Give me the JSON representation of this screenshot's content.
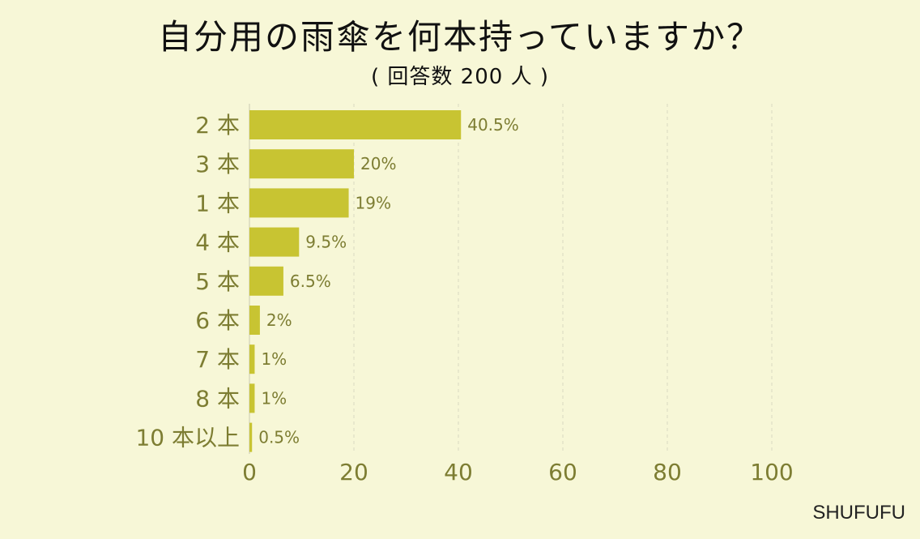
{
  "chart_data": {
    "type": "bar",
    "orientation": "horizontal",
    "title": "自分用の雨傘を何本持っていますか？",
    "subtitle": "( 回答数 200 人 )",
    "categories": [
      "2 本",
      "3 本",
      "1 本",
      "4 本",
      "5 本",
      "6 本",
      "7 本",
      "8 本",
      "10 本以上"
    ],
    "values": [
      40.5,
      20,
      19,
      9.5,
      6.5,
      2,
      1,
      1,
      0.5
    ],
    "value_labels": [
      "40.5%",
      "20%",
      "19%",
      "9.5%",
      "6.5%",
      "2%",
      "1%",
      "1%",
      "0.5%"
    ],
    "xlim": [
      0,
      100
    ],
    "xticks": [
      0,
      20,
      40,
      60,
      80,
      100
    ],
    "grid": true,
    "colors": {
      "bar": "#c8c432",
      "label": "#7d7d32",
      "background": "#f7f7d7"
    }
  },
  "source": "SHUFUFU"
}
